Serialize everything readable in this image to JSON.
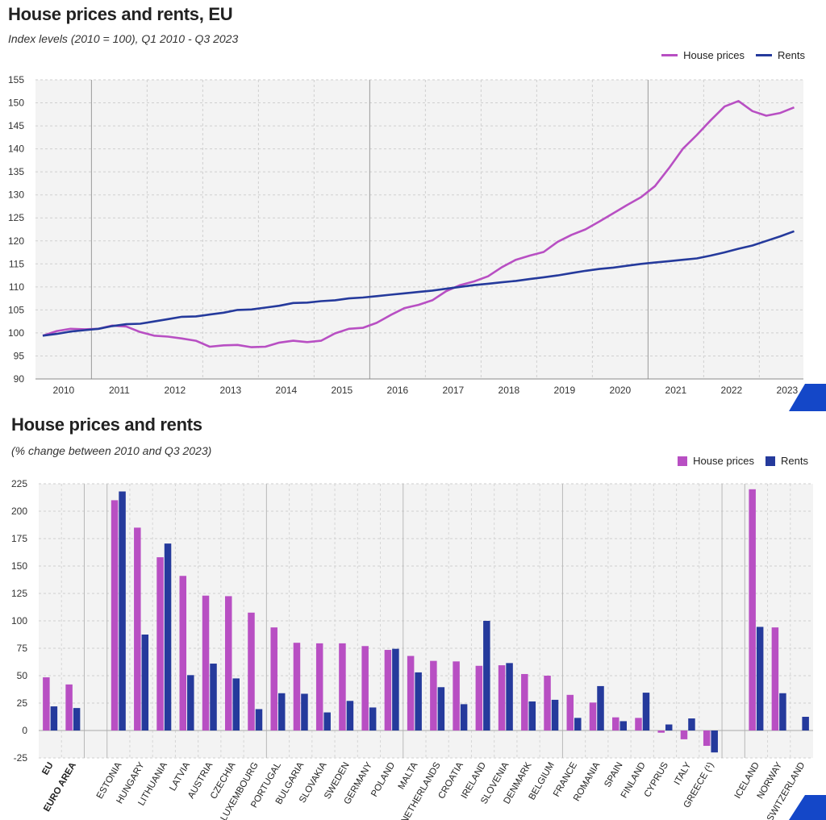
{
  "colors": {
    "house": "#b84fc3",
    "rents": "#253a9c",
    "accent": "#1447c8"
  },
  "chart_data": [
    {
      "type": "line",
      "title": "House prices and rents, EU",
      "subtitle": "Index levels (2010 = 100), Q1 2010 - Q3 2023",
      "legend": [
        "House prices",
        "Rents"
      ],
      "ylim": [
        90,
        155
      ],
      "yticks": [
        90,
        95,
        100,
        105,
        110,
        115,
        120,
        125,
        130,
        135,
        140,
        145,
        150,
        155
      ],
      "x_labels": [
        "2010",
        "2011",
        "2012",
        "2013",
        "2014",
        "2015",
        "2016",
        "2017",
        "2018",
        "2019",
        "2020",
        "2021",
        "2022",
        "2023"
      ],
      "series": [
        {
          "name": "House prices",
          "values": [
            99.4,
            100.4,
            100.9,
            100.8,
            100.9,
            101.6,
            101.4,
            100.2,
            99.4,
            99.2,
            98.8,
            98.3,
            97.0,
            97.3,
            97.4,
            96.9,
            97.0,
            97.9,
            98.3,
            98.0,
            98.3,
            99.9,
            100.9,
            101.1,
            102.2,
            103.9,
            105.4,
            106.1,
            107.1,
            109.1,
            110.4,
            111.2,
            112.3,
            114.3,
            115.9,
            116.8,
            117.6,
            119.8,
            121.3,
            122.5,
            124.2,
            126.0,
            127.8,
            129.5,
            131.9,
            135.8,
            140.0,
            143.0,
            146.2,
            149.2,
            150.4,
            148.2,
            147.2,
            147.8,
            149.0
          ]
        },
        {
          "name": "Rents",
          "values": [
            99.4,
            99.8,
            100.3,
            100.6,
            100.9,
            101.5,
            101.9,
            102.0,
            102.5,
            103.0,
            103.5,
            103.6,
            104.0,
            104.4,
            105.0,
            105.1,
            105.5,
            105.9,
            106.5,
            106.6,
            106.9,
            107.1,
            107.5,
            107.7,
            108.0,
            108.3,
            108.6,
            108.9,
            109.2,
            109.6,
            110.0,
            110.4,
            110.7,
            111.0,
            111.3,
            111.7,
            112.1,
            112.5,
            113.0,
            113.5,
            113.9,
            114.2,
            114.6,
            115.0,
            115.3,
            115.6,
            115.9,
            116.2,
            116.8,
            117.5,
            118.3,
            119.0,
            120.0,
            121.0,
            122.1
          ]
        }
      ]
    },
    {
      "type": "bar",
      "title": "House prices and rents",
      "subtitle": "(% change between 2010 and Q3 2023)",
      "legend": [
        "House prices",
        "Rents"
      ],
      "ylim": [
        -25,
        225
      ],
      "yticks": [
        -25,
        0,
        25,
        50,
        75,
        100,
        125,
        150,
        175,
        200,
        225
      ],
      "categories": [
        "EU",
        "EURO AREA",
        "",
        "ESTONIA",
        "HUNGARY",
        "LITHUANIA",
        "LATVIA",
        "AUSTRIA",
        "CZECHIA",
        "LUXEMBOURG",
        "PORTUGAL",
        "BULGARIA",
        "SLOVAKIA",
        "SWEDEN",
        "GERMANY",
        "POLAND",
        "MALTA",
        "NETHERLANDS",
        "CROATIA",
        "IRELAND",
        "SLOVENIA",
        "DENMARK",
        "BELGIUM",
        "FRANCE",
        "ROMANIA",
        "SPAIN",
        "FINLAND",
        "CYPRUS",
        "ITALY",
        "GREECE (¹)",
        "",
        "ICELAND",
        "NORWAY",
        "SWITZERLAND"
      ],
      "series": [
        {
          "name": "House prices",
          "values": [
            48.5,
            42,
            null,
            210,
            185,
            158,
            141,
            123,
            122.5,
            107.5,
            94,
            80,
            79.5,
            79.5,
            77,
            73.5,
            68,
            63.5,
            63,
            59,
            59.5,
            51.5,
            50,
            32.5,
            25.5,
            12,
            11.5,
            -2,
            -8,
            -14,
            null,
            220,
            94,
            null
          ]
        },
        {
          "name": "Rents",
          "values": [
            22,
            20.5,
            null,
            218,
            87.5,
            170.5,
            50.5,
            61,
            47.5,
            19.5,
            34,
            33.5,
            16.5,
            27,
            21,
            74.5,
            53,
            39.5,
            24,
            100,
            61.5,
            26.5,
            28,
            11.5,
            40.5,
            8.5,
            34.5,
            5.5,
            11,
            -20,
            null,
            94.5,
            34,
            12.5
          ]
        }
      ]
    }
  ]
}
